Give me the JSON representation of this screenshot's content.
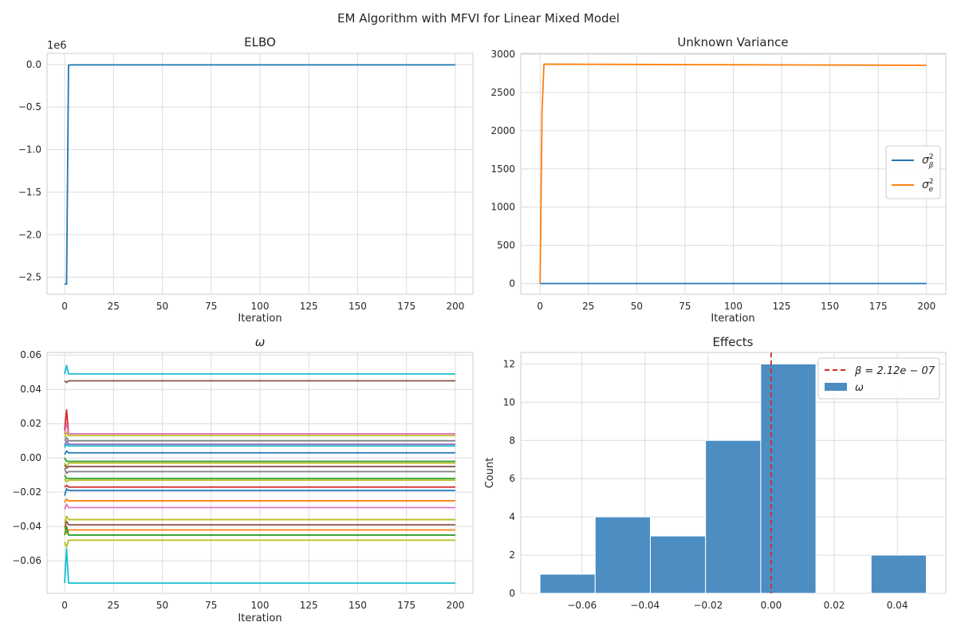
{
  "figure": {
    "suptitle": "EM Algorithm with MFVI for Linear Mixed Model"
  },
  "chart_data": [
    {
      "id": "elbo",
      "type": "line",
      "title": "ELBO",
      "xlabel": "Iteration",
      "ylabel": "",
      "offset_text": "1e6",
      "xlim": [
        -9,
        209
      ],
      "ylim": [
        -2.7,
        0.13
      ],
      "xticks": [
        0,
        25,
        50,
        75,
        100,
        125,
        150,
        175,
        200
      ],
      "yticks": [
        0.0,
        -0.5,
        -1.0,
        -1.5,
        -2.0,
        -2.5
      ],
      "ytick_labels": [
        "0.0",
        "−0.5",
        "−1.0",
        "−1.5",
        "−2.0",
        "−2.5"
      ],
      "grid": true,
      "series": [
        {
          "x": [
            0,
            1,
            2,
            3,
            200
          ],
          "y": [
            -2.58,
            -2.58,
            -0.01,
            -0.005,
            -0.005
          ],
          "color": "#1f77b4"
        }
      ]
    },
    {
      "id": "variance",
      "type": "line",
      "title": "Unknown Variance",
      "xlabel": "Iteration",
      "ylabel": "",
      "xlim": [
        -10,
        210
      ],
      "ylim": [
        -140,
        3010
      ],
      "xticks": [
        0,
        25,
        50,
        75,
        100,
        125,
        150,
        175,
        200
      ],
      "yticks": [
        0,
        500,
        1000,
        1500,
        2000,
        2500,
        3000
      ],
      "grid": true,
      "legend": {
        "placement": "center-right",
        "entries": [
          {
            "label": "σ²β",
            "base": "σ",
            "sup": "2",
            "sub": "β",
            "color": "#1f77b4"
          },
          {
            "label": "σ²e",
            "base": "σ",
            "sup": "2",
            "sub": "e",
            "color": "#ff7f0e"
          }
        ]
      },
      "series": [
        {
          "name": "σ²β",
          "x": [
            0,
            200
          ],
          "y": [
            1,
            1
          ],
          "color": "#1f77b4"
        },
        {
          "name": "σ²e",
          "x": [
            0,
            1,
            2,
            25,
            50,
            100,
            150,
            200
          ],
          "y": [
            5,
            2250,
            2870,
            2868,
            2866,
            2862,
            2858,
            2855
          ],
          "color": "#ff7f0e"
        }
      ]
    },
    {
      "id": "omega",
      "type": "line",
      "title": "ω",
      "xlabel": "Iteration",
      "ylabel": "",
      "xlim": [
        -9,
        209
      ],
      "ylim": [
        -0.079,
        0.0615
      ],
      "xticks": [
        0,
        25,
        50,
        75,
        100,
        125,
        150,
        175,
        200
      ],
      "yticks": [
        -0.06,
        -0.04,
        -0.02,
        0.0,
        0.02,
        0.04,
        0.06
      ],
      "ytick_labels": [
        "−0.06",
        "−0.04",
        "−0.02",
        "0.00",
        "0.02",
        "0.04",
        "0.06"
      ],
      "grid": true,
      "traces": [
        {
          "start": 0.049,
          "peak": 0.054,
          "final": 0.049,
          "color": "#17becf"
        },
        {
          "start": 0.045,
          "peak": 0.044,
          "final": 0.045,
          "color": "#8c564b"
        },
        {
          "start": 0.016,
          "peak": 0.028,
          "final": 0.014,
          "color": "#d62728"
        },
        {
          "start": 0.014,
          "peak": 0.02,
          "final": 0.014,
          "color": "#e377c2"
        },
        {
          "start": 0.012,
          "peak": 0.015,
          "final": 0.013,
          "color": "#bcbd22"
        },
        {
          "start": 0.01,
          "peak": 0.012,
          "final": 0.01,
          "color": "#7f7f7f"
        },
        {
          "start": 0.007,
          "peak": 0.01,
          "final": 0.008,
          "color": "#9467bd"
        },
        {
          "start": 0.006,
          "peak": 0.008,
          "final": 0.007,
          "color": "#17becf"
        },
        {
          "start": 0.002,
          "peak": 0.004,
          "final": 0.003,
          "color": "#1f77b4"
        },
        {
          "start": 0.0,
          "peak": -0.002,
          "final": -0.002,
          "color": "#2ca02c"
        },
        {
          "start": -0.003,
          "peak": -0.005,
          "final": -0.003,
          "color": "#bcbd22"
        },
        {
          "start": -0.004,
          "peak": -0.006,
          "final": -0.005,
          "color": "#8c564b"
        },
        {
          "start": -0.006,
          "peak": -0.009,
          "final": -0.008,
          "color": "#7f7f7f"
        },
        {
          "start": -0.01,
          "peak": -0.012,
          "final": -0.012,
          "color": "#2ca02c"
        },
        {
          "start": -0.012,
          "peak": -0.014,
          "final": -0.013,
          "color": "#bcbd22"
        },
        {
          "start": -0.017,
          "peak": -0.016,
          "final": -0.017,
          "color": "#d62728"
        },
        {
          "start": -0.022,
          "peak": -0.018,
          "final": -0.019,
          "color": "#1f77b4"
        },
        {
          "start": -0.026,
          "peak": -0.024,
          "final": -0.025,
          "color": "#ff7f0e"
        },
        {
          "start": -0.03,
          "peak": -0.027,
          "final": -0.029,
          "color": "#e377c2"
        },
        {
          "start": -0.038,
          "peak": -0.034,
          "final": -0.036,
          "color": "#bcbd22"
        },
        {
          "start": -0.041,
          "peak": -0.037,
          "final": -0.039,
          "color": "#8c564b"
        },
        {
          "start": -0.04,
          "peak": -0.044,
          "final": -0.042,
          "color": "#ff7f0e"
        },
        {
          "start": -0.045,
          "peak": -0.04,
          "final": -0.045,
          "color": "#2ca02c"
        },
        {
          "start": -0.049,
          "peak": -0.052,
          "final": -0.048,
          "color": "#bcbd22"
        },
        {
          "start": -0.073,
          "peak": -0.053,
          "final": -0.073,
          "color": "#17becf"
        }
      ]
    },
    {
      "id": "effects",
      "type": "bar",
      "title": "Effects",
      "xlabel": "",
      "ylabel": "Count",
      "xlim": [
        -0.0794,
        0.0554
      ],
      "ylim": [
        0,
        12.6
      ],
      "xticks": [
        -0.06,
        -0.04,
        -0.02,
        0.0,
        0.02,
        0.04
      ],
      "xtick_labels": [
        "−0.06",
        "−0.04",
        "−0.02",
        "0.00",
        "0.02",
        "0.04"
      ],
      "yticks": [
        0,
        2,
        4,
        6,
        8,
        10,
        12
      ],
      "grid": true,
      "legend": {
        "placement": "top-right",
        "entries": [
          {
            "label": "β = 2.12e − 07",
            "color": "#d62728",
            "kind": "dashed-line"
          },
          {
            "label": "ω",
            "color": "#4c8dc2",
            "kind": "patch"
          }
        ]
      },
      "bins": [
        {
          "left": -0.0733,
          "right": -0.0558,
          "count": 1
        },
        {
          "left": -0.0558,
          "right": -0.0383,
          "count": 4
        },
        {
          "left": -0.0383,
          "right": -0.0208,
          "count": 3
        },
        {
          "left": -0.0208,
          "right": -0.0033,
          "count": 8
        },
        {
          "left": -0.0033,
          "right": 0.0142,
          "count": 12
        },
        {
          "left": 0.0142,
          "right": 0.0317,
          "count": 0
        },
        {
          "left": 0.0317,
          "right": 0.0492,
          "count": 2
        }
      ],
      "vline": {
        "x": 2.12e-07,
        "label": "β = 2.12e − 07",
        "color": "#d62728"
      }
    }
  ]
}
